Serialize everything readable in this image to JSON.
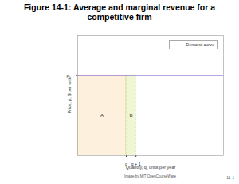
{
  "chart_data": {
    "type": "line",
    "title": "Figure 14-1:  Average and marginal revenue for a competitive firm",
    "x_label": "Quantity, q, units per year",
    "y_label": "Price, p, $ per unit",
    "x": [
      0,
      15
    ],
    "series": [
      {
        "name": "Demand curve",
        "color": "#9f86d8",
        "values": [
          10,
          10
        ]
      }
    ],
    "regions": [
      {
        "label": "A",
        "x": [
          0,
          5
        ],
        "y": [
          0,
          10
        ],
        "color": "#fdf0dc"
      },
      {
        "label": "B",
        "x": [
          5,
          6
        ],
        "y": [
          0,
          10
        ],
        "color": "#eef6d2"
      }
    ],
    "xlim": [
      0,
      15
    ],
    "ylim": [
      0,
      15
    ],
    "xticks": [
      {
        "value": 5,
        "label": "q"
      },
      {
        "value": 6,
        "label": "q + 1"
      }
    ],
    "yticks": [
      {
        "value": 10,
        "label": "p₁"
      }
    ],
    "grid": false,
    "legend": "top-right",
    "caption": "Image by MIT OpenCourseWare",
    "page_number": "11-1"
  }
}
